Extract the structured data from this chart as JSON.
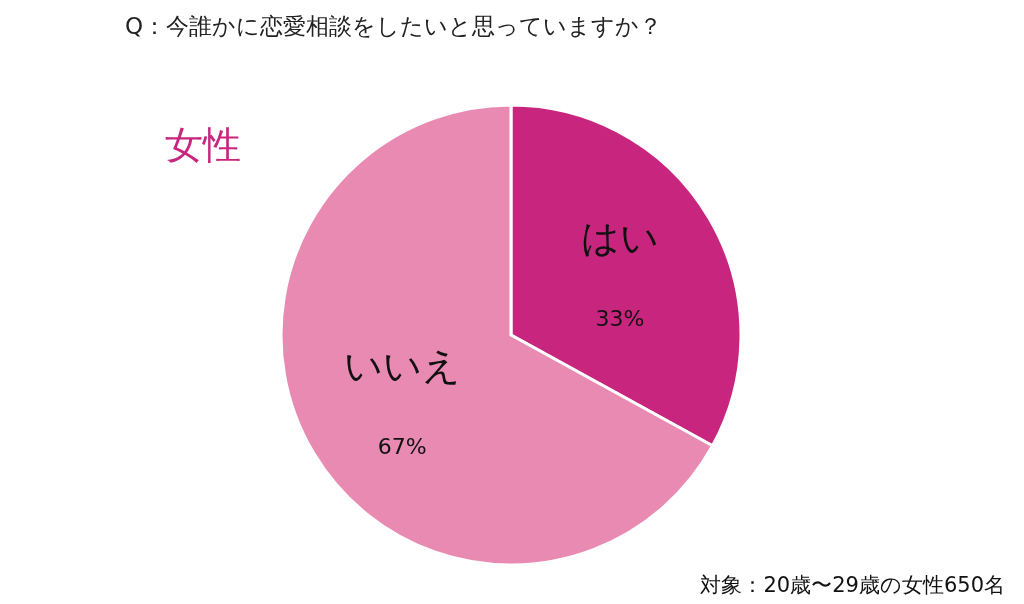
{
  "chart_data": {
    "type": "pie",
    "title": "Q：今誰かに恋愛相談をしたいと思っていますか？",
    "subtitle": "女性",
    "categories": [
      "はい",
      "いいえ"
    ],
    "values": [
      33,
      67
    ],
    "value_labels": [
      "33%",
      "67%"
    ],
    "colors": [
      "#c8267e",
      "#e98ab3"
    ],
    "annotations": [
      "対象：20歳〜29歳の女性650名"
    ]
  }
}
